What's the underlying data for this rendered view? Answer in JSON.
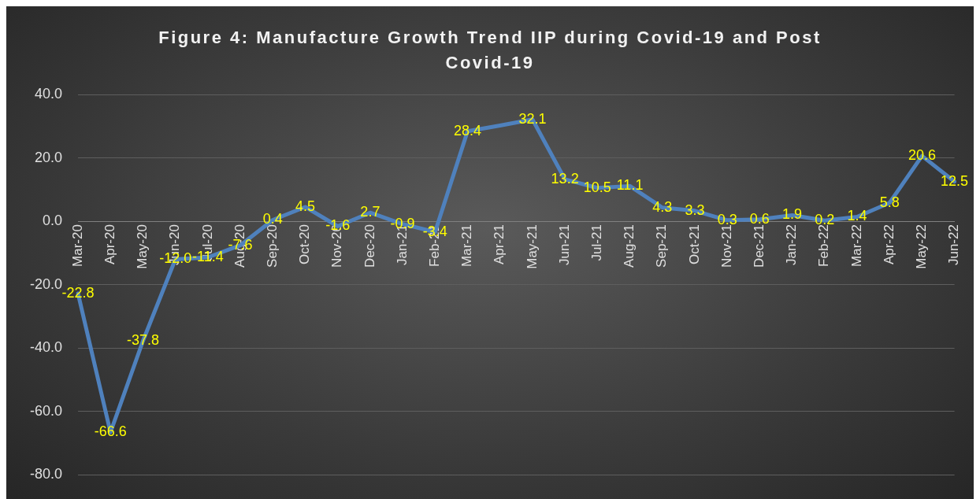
{
  "chart_data": {
    "type": "line",
    "title": "Figure 4: Manufacture Growth Trend IIP during Covid-19 and Post Covid-19",
    "categories": [
      "Mar-20",
      "Apr-20",
      "May-20",
      "Jun-20",
      "Jul-20",
      "Aug-20",
      "Sep-20",
      "Oct-20",
      "Nov-20",
      "Dec-20",
      "Jan-21",
      "Feb-21",
      "Mar-21",
      "Apr-21",
      "May-21",
      "Jun-21",
      "Jul-21",
      "Aug-21",
      "Sep-21",
      "Oct-21",
      "Nov-21",
      "Dec-21",
      "Jan-22",
      "Feb-22",
      "Mar-22",
      "Apr-22",
      "May-22",
      "Jun-22"
    ],
    "series": [
      {
        "color": "#4f81bd",
        "values": [
          -22.8,
          -66.6,
          -37.8,
          -12.0,
          -11.4,
          -7.6,
          0.4,
          4.5,
          -1.6,
          2.7,
          -0.9,
          -3.4,
          28.4,
          30.2,
          32.1,
          13.2,
          10.5,
          11.1,
          4.3,
          3.3,
          0.3,
          0.6,
          1.9,
          0.2,
          1.4,
          5.8,
          20.6,
          12.5
        ],
        "value_labels": [
          "-22.8",
          "-66.6",
          "-37.8",
          "-12.0",
          "-11.4",
          "-7.6",
          "0.4",
          "4.5",
          "-1.6",
          "2.7",
          "-0.9",
          "-3.4",
          "28.4",
          null,
          "32.1",
          "13.2",
          "10.5",
          "11.1",
          "4.3",
          "3.3",
          "0.3",
          "0.6",
          "1.9",
          "0.2",
          "1.4",
          "5.8",
          "20.6",
          "12.5"
        ]
      }
    ],
    "ylim": [
      -80,
      40
    ],
    "yticks": [
      {
        "value": -80,
        "label": "-80.0"
      },
      {
        "value": -60,
        "label": "-60.0"
      },
      {
        "value": -40,
        "label": "-40.0"
      },
      {
        "value": -20,
        "label": "-20.0"
      },
      {
        "value": 0,
        "label": "0.0"
      },
      {
        "value": 20,
        "label": "20.0"
      },
      {
        "value": 40,
        "label": "40.0"
      }
    ],
    "grid": "y",
    "legend": false,
    "marker": "none",
    "line_style": "solid"
  }
}
